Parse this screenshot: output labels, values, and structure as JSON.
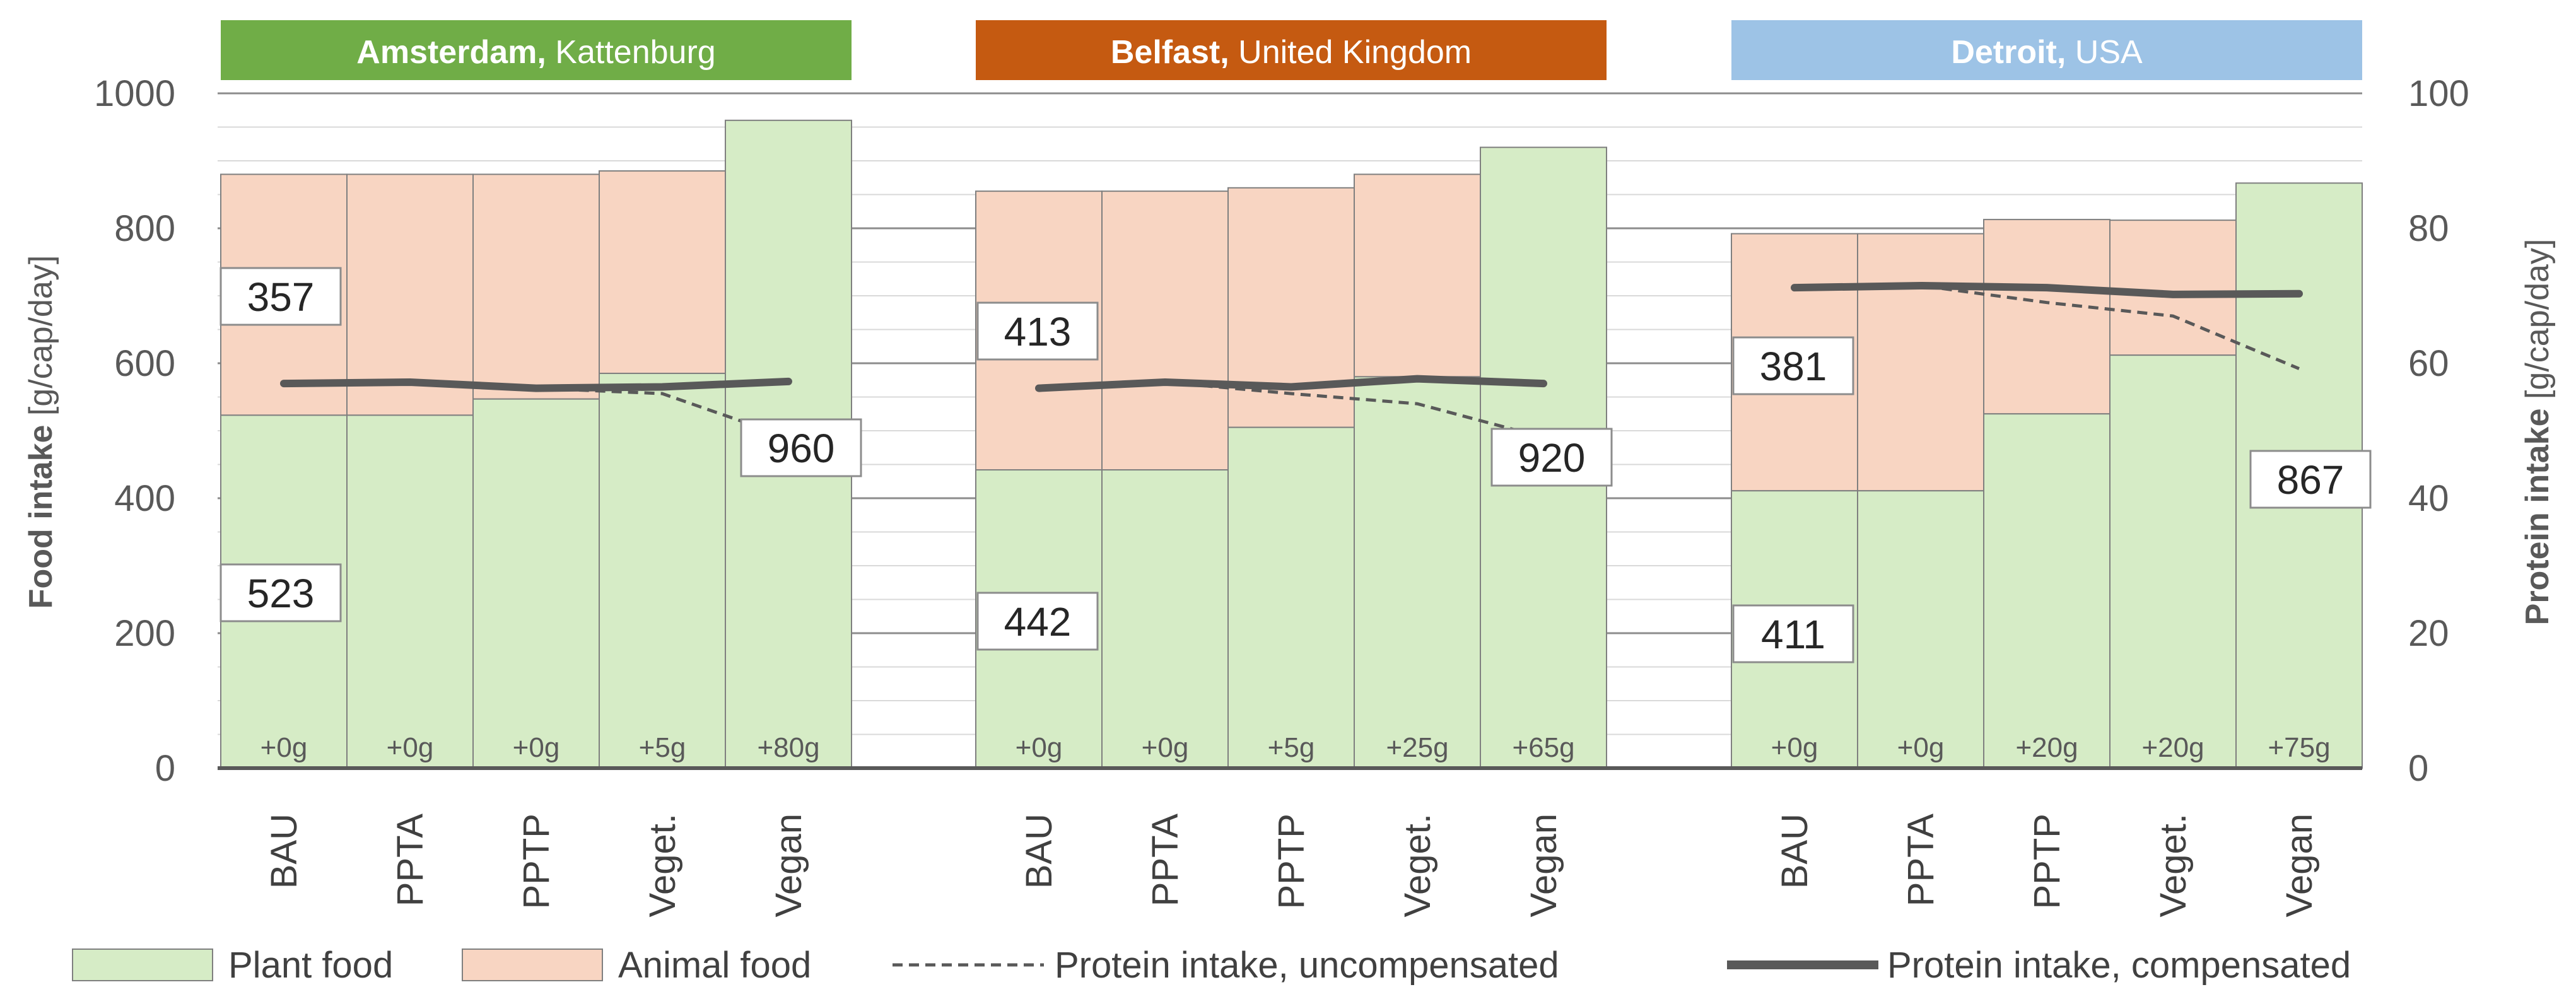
{
  "chart_data": {
    "type": "bar",
    "stacked": true,
    "left_axis": {
      "label_bold": "Food intake",
      "label_rest": " [g/cap/day]",
      "ylim": [
        0,
        1000
      ],
      "ticks": [
        "0",
        "200",
        "400",
        "600",
        "800",
        "1000"
      ]
    },
    "right_axis": {
      "label_bold": "Protein intake",
      "label_rest": " [g/cap/day]",
      "ylim": [
        0,
        100
      ],
      "ticks": [
        "0",
        "20",
        "40",
        "60",
        "80",
        "100"
      ]
    },
    "categories": [
      "BAU",
      "PPTA",
      "PPTP",
      "Veget.",
      "Vegan"
    ],
    "panels": [
      {
        "name": "Amsterdam,",
        "sub": " Kattenburg",
        "color": "#70ad47",
        "plant": [
          523,
          523,
          547,
          585,
          960
        ],
        "animal": [
          357,
          357,
          333,
          300,
          0
        ],
        "protein_compensated": [
          57,
          57.2,
          56.3,
          56.5,
          57.3
        ],
        "protein_uncompensated": [
          57,
          57.2,
          56.3,
          55.5,
          49
        ],
        "deltas": [
          "+0g",
          "+0g",
          "+0g",
          "+5g",
          "+80g"
        ],
        "callouts": {
          "animal": "357",
          "plant": "523",
          "vegan": "960"
        }
      },
      {
        "name": "Belfast,",
        "sub": " United Kingdom",
        "color": "#c55a11",
        "plant": [
          442,
          442,
          505,
          580,
          920
        ],
        "animal": [
          413,
          413,
          355,
          300,
          0
        ],
        "protein_compensated": [
          56.3,
          57.2,
          56.5,
          57.7,
          57
        ],
        "protein_uncompensated": [
          56.3,
          57.2,
          55.5,
          54,
          49
        ],
        "deltas": [
          "+0g",
          "+0g",
          "+5g",
          "+25g",
          "+65g"
        ],
        "callouts": {
          "animal": "413",
          "plant": "442",
          "vegan": "920"
        }
      },
      {
        "name": "Detroit,",
        "sub": " USA",
        "color": "#9dc3e6",
        "plant": [
          411,
          411,
          525,
          612,
          867
        ],
        "animal": [
          381,
          381,
          288,
          200,
          0
        ],
        "protein_compensated": [
          71.2,
          71.5,
          71.2,
          70.2,
          70.3
        ],
        "protein_uncompensated": [
          71.2,
          71.5,
          69,
          67,
          59.2
        ],
        "deltas": [
          "+0g",
          "+0g",
          "+20g",
          "+20g",
          "+75g"
        ],
        "callouts": {
          "animal": "381",
          "plant": "411",
          "vegan": "867"
        }
      }
    ],
    "legend": {
      "plant": "Plant food",
      "animal": "Animal food",
      "uncompensated": "Protein intake, uncompensated",
      "compensated": "Protein intake, compensated"
    },
    "colors": {
      "plant_fill": "#d6ecc6",
      "animal_fill": "#f8d5c2",
      "line": "#595959"
    }
  }
}
